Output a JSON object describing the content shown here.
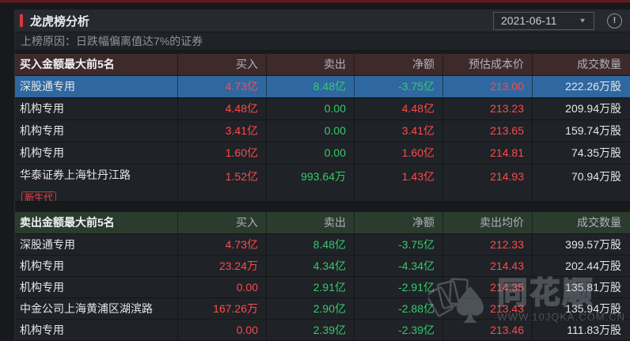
{
  "header": {
    "title": "龙虎榜分析",
    "date": "2021-06-11"
  },
  "subtitle": "上榜原因：日跌幅偏离值达7%的证券",
  "tables": {
    "buy": {
      "title": "买入金额最大前5名",
      "columns": [
        "买入",
        "卖出",
        "净额",
        "预估成本价",
        "成交数量"
      ],
      "rows": [
        {
          "name": "深股通专用",
          "highlighted": true,
          "values": [
            "4.73亿",
            "8.48亿",
            "-3.75亿",
            "213.00",
            "222.26万股"
          ],
          "colors": [
            "red",
            "green",
            "green",
            "red",
            "white"
          ]
        },
        {
          "name": "机构专用",
          "values": [
            "4.48亿",
            "0.00",
            "4.48亿",
            "213.23",
            "209.94万股"
          ],
          "colors": [
            "red",
            "green",
            "red",
            "red",
            "white"
          ]
        },
        {
          "name": "机构专用",
          "values": [
            "3.41亿",
            "0.00",
            "3.41亿",
            "213.65",
            "159.74万股"
          ],
          "colors": [
            "red",
            "green",
            "red",
            "red",
            "white"
          ]
        },
        {
          "name": "机构专用",
          "values": [
            "1.60亿",
            "0.00",
            "1.60亿",
            "214.81",
            "74.35万股"
          ],
          "colors": [
            "red",
            "green",
            "red",
            "red",
            "white"
          ]
        },
        {
          "name": "华泰证券上海牡丹江路",
          "badge": "新生代",
          "values": [
            "1.52亿",
            "993.64万",
            "1.43亿",
            "214.93",
            "70.94万股"
          ],
          "colors": [
            "red",
            "green",
            "red",
            "red",
            "white"
          ]
        }
      ]
    },
    "sell": {
      "title": "卖出金额最大前5名",
      "columns": [
        "买入",
        "卖出",
        "净额",
        "卖出均价",
        "成交数量"
      ],
      "rows": [
        {
          "name": "深股通专用",
          "values": [
            "4.73亿",
            "8.48亿",
            "-3.75亿",
            "212.33",
            "399.57万股"
          ],
          "colors": [
            "red",
            "green",
            "green",
            "red",
            "white"
          ]
        },
        {
          "name": "机构专用",
          "values": [
            "23.24万",
            "4.34亿",
            "-4.34亿",
            "214.43",
            "202.44万股"
          ],
          "colors": [
            "red",
            "green",
            "green",
            "red",
            "white"
          ]
        },
        {
          "name": "机构专用",
          "values": [
            "0.00",
            "2.91亿",
            "-2.91亿",
            "214.35",
            "135.81万股"
          ],
          "colors": [
            "red",
            "green",
            "green",
            "red",
            "white"
          ]
        },
        {
          "name": "中金公司上海黄浦区湖滨路",
          "values": [
            "167.26万",
            "2.90亿",
            "-2.88亿",
            "213.43",
            "135.94万股"
          ],
          "colors": [
            "red",
            "green",
            "green",
            "red",
            "white"
          ]
        },
        {
          "name": "机构专用",
          "values": [
            "0.00",
            "2.39亿",
            "-2.39亿",
            "213.46",
            "111.83万股"
          ],
          "colors": [
            "red",
            "green",
            "green",
            "red",
            "white"
          ]
        }
      ]
    }
  },
  "icons": {
    "dropdown": "▼",
    "info": "!"
  },
  "watermark": {
    "brand": "同花顺",
    "url": "WWW.10JQKA.COM.CN"
  },
  "colors": {
    "accent_red": "#d4393d",
    "value_red": "#fb4b4b",
    "value_green": "#36ca6c",
    "highlight_row_blue": "#2f68a1",
    "buy_header_bg": "#3e2a2a",
    "sell_header_bg": "#2a3c2e",
    "top_strip": "#5c1d21"
  }
}
